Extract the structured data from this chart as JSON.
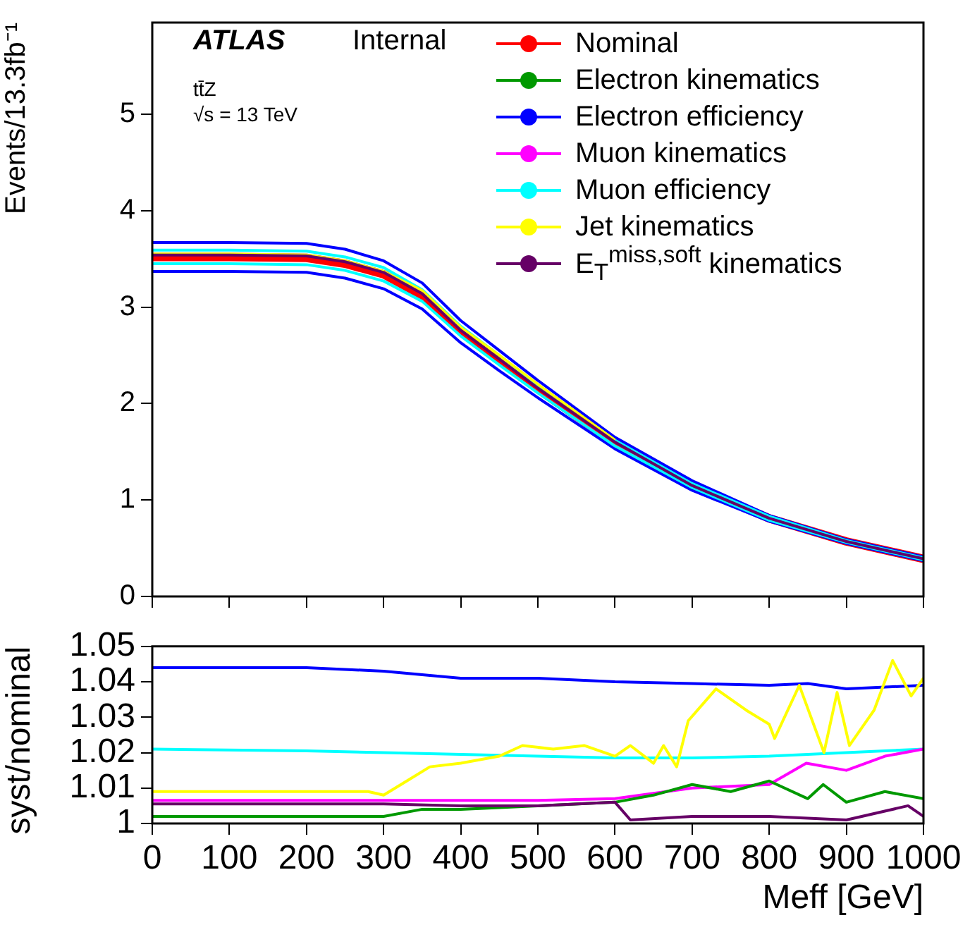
{
  "chart_data": [
    {
      "type": "line",
      "ylabel": "Events/13.3fb⁻¹",
      "annotations": [
        "ATLAS",
        "Internal",
        "tt̄Z",
        "√s = 13 TeV"
      ],
      "x": [
        0,
        100,
        200,
        250,
        300,
        350,
        400,
        450,
        500,
        600,
        700,
        800,
        900,
        1000
      ],
      "xlim": [
        0,
        1000
      ],
      "xticks": [
        {
          "value": 0,
          "label": null
        },
        {
          "value": 100,
          "label": null
        },
        {
          "value": 200,
          "label": null
        },
        {
          "value": 300,
          "label": null
        },
        {
          "value": 400,
          "label": null
        },
        {
          "value": 500,
          "label": null
        },
        {
          "value": 600,
          "label": null
        },
        {
          "value": 700,
          "label": null
        },
        {
          "value": 800,
          "label": null
        },
        {
          "value": 900,
          "label": null
        },
        {
          "value": 1000,
          "label": null
        }
      ],
      "ylim": [
        0,
        5.95
      ],
      "yticks": [
        0,
        1,
        2,
        3,
        4,
        5
      ],
      "tick_labels": "y",
      "grid": false,
      "legend": "top right",
      "marker": "none",
      "line_style": "solid",
      "series": [
        {
          "name": "Nominal",
          "color": "#ff0000",
          "values": [
            3.52,
            3.52,
            3.51,
            3.45,
            3.34,
            3.12,
            2.75,
            2.45,
            2.15,
            1.59,
            1.15,
            0.81,
            0.57,
            0.39
          ]
        },
        {
          "name": "Electron kinematics",
          "color": "#009900",
          "values": [
            null,
            null,
            null,
            null,
            null,
            null,
            null,
            null,
            null,
            null,
            null,
            null,
            null,
            null
          ]
        },
        {
          "name": "Electron efficiency",
          "color": "#0000ff",
          "values": [
            3.67,
            3.67,
            3.66,
            3.6,
            3.48,
            3.25,
            2.86,
            2.55,
            2.24,
            1.65,
            1.2,
            0.84,
            0.59,
            0.41
          ]
        },
        {
          "color": "#0000ff",
          "values": [
            3.37,
            3.37,
            3.36,
            3.3,
            3.19,
            2.98,
            2.63,
            2.34,
            2.06,
            1.53,
            1.1,
            0.78,
            0.55,
            0.37
          ]
        },
        {
          "name": "Muon kinematics",
          "color": "#ff00ff",
          "values": [
            null,
            null,
            null,
            null,
            null,
            null,
            null,
            null,
            null,
            null,
            null,
            null,
            null,
            null
          ]
        },
        {
          "name": "Muon efficiency",
          "color": "#00ffff",
          "values": [
            3.59,
            3.59,
            3.58,
            3.52,
            3.41,
            3.18,
            2.8,
            2.5,
            2.19,
            1.62,
            1.17,
            0.83,
            0.58,
            0.4
          ]
        },
        {
          "color": "#00ffff",
          "values": [
            3.45,
            3.45,
            3.44,
            3.38,
            3.27,
            3.06,
            2.7,
            2.4,
            2.11,
            1.56,
            1.13,
            0.79,
            0.56,
            0.38
          ]
        },
        {
          "name": "Jet kinematics",
          "color": "#ffff00",
          "values": [
            3.55,
            3.55,
            3.54,
            3.48,
            3.37,
            3.17,
            2.79,
            2.5,
            2.2,
            1.62,
            null,
            null,
            null,
            null
          ]
        },
        {
          "name": "E$_{T}$$^{miss,soft}$ kinematics",
          "color": "#660066",
          "values": [
            3.54,
            3.54,
            3.53,
            3.47,
            3.36,
            3.14,
            2.76,
            2.46,
            2.16,
            1.6,
            1.15,
            0.81,
            0.57,
            0.39
          ]
        }
      ]
    },
    {
      "type": "line",
      "xlabel": "Meff [GeV]",
      "ylabel": "syst/nominal",
      "xlim": [
        0,
        1000
      ],
      "xticks": [
        0,
        100,
        200,
        300,
        400,
        500,
        600,
        700,
        800,
        900,
        1000
      ],
      "ylim": [
        1,
        1.05
      ],
      "yticks": [
        1,
        1.01,
        1.02,
        1.03,
        1.04,
        1.05
      ],
      "grid": false,
      "marker": "none",
      "line_style": "solid",
      "series": [
        {
          "color": "#0000ff",
          "x": [
            0,
            100,
            200,
            300,
            400,
            500,
            600,
            700,
            800,
            850,
            900,
            1000
          ],
          "values": [
            1.044,
            1.044,
            1.044,
            1.043,
            1.041,
            1.041,
            1.04,
            1.0395,
            1.039,
            1.0395,
            1.038,
            1.039
          ]
        },
        {
          "color": "#00ffff",
          "x": [
            0,
            200,
            300,
            400,
            500,
            600,
            700,
            800,
            900,
            1000
          ],
          "values": [
            1.021,
            1.0205,
            1.02,
            1.0195,
            1.019,
            1.0185,
            1.0185,
            1.019,
            1.02,
            1.021
          ]
        },
        {
          "color": "#ffff00",
          "x": [
            0,
            100,
            200,
            280,
            300,
            330,
            360,
            400,
            450,
            480,
            520,
            560,
            600,
            620,
            650,
            663,
            680,
            695,
            731,
            770,
            800,
            807,
            839,
            871,
            888,
            904,
            936,
            960,
            984,
            1000
          ],
          "values": [
            1.009,
            1.009,
            1.009,
            1.009,
            1.008,
            1.012,
            1.016,
            1.017,
            1.019,
            1.022,
            1.021,
            1.022,
            1.019,
            1.022,
            1.017,
            1.022,
            1.016,
            1.029,
            1.038,
            1.032,
            1.028,
            1.024,
            1.039,
            1.02,
            1.037,
            1.022,
            1.032,
            1.046,
            1.036,
            1.041
          ]
        },
        {
          "color": "#ff00ff",
          "x": [
            0,
            100,
            200,
            300,
            400,
            500,
            600,
            700,
            800,
            848,
            900,
            950,
            1000
          ],
          "values": [
            1.0065,
            1.0065,
            1.0065,
            1.0065,
            1.0065,
            1.0065,
            1.007,
            1.01,
            1.011,
            1.017,
            1.015,
            1.019,
            1.021
          ]
        },
        {
          "color": "#009900",
          "x": [
            0,
            100,
            200,
            300,
            350,
            400,
            500,
            600,
            650,
            700,
            750,
            800,
            850,
            870,
            900,
            950,
            1000
          ],
          "values": [
            1.002,
            1.002,
            1.002,
            1.002,
            1.004,
            1.004,
            1.005,
            1.006,
            1.008,
            1.011,
            1.009,
            1.012,
            1.007,
            1.011,
            1.006,
            1.009,
            1.007
          ]
        },
        {
          "color": "#660066",
          "x": [
            0,
            100,
            200,
            300,
            400,
            500,
            600,
            620,
            700,
            800,
            900,
            980,
            1000
          ],
          "values": [
            1.0055,
            1.0055,
            1.0055,
            1.0055,
            1.005,
            1.005,
            1.006,
            1.001,
            1.002,
            1.002,
            1.001,
            1.005,
            1.002
          ]
        }
      ]
    }
  ]
}
